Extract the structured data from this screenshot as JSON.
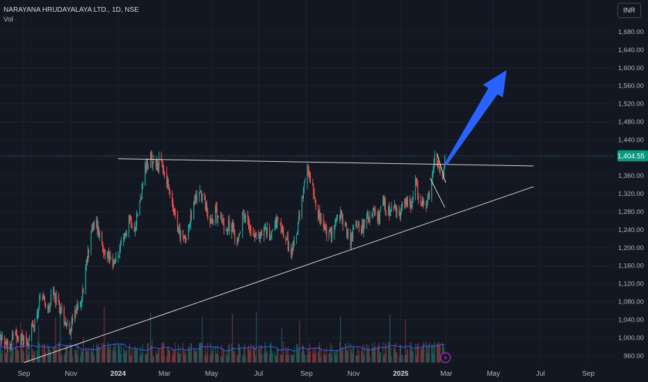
{
  "header": {
    "symbol_title": "NARAYANA HRUDAYALAYA LTD., 1D, NSE",
    "volume_label": "Vol"
  },
  "toolbar": {
    "currency_label": "INR"
  },
  "colors": {
    "background": "#131722",
    "up": "#26a69a",
    "down": "#ef5350",
    "volume_ma": "#2962ff",
    "trendline": "#e6d9d3",
    "arrow": "#2962ff",
    "price_tag": "#089981",
    "flash_badge": "#9c27b0"
  },
  "chart_data": {
    "type": "candlestick",
    "title": "NARAYANA HRUDAYALAYA LTD., 1D, NSE",
    "y_ticks": [
      "960.00",
      "1,000.00",
      "1,040.00",
      "1,080.00",
      "1,120.00",
      "1,160.00",
      "1,200.00",
      "1,240.00",
      "1,280.00",
      "1,320.00",
      "1,360.00",
      "1,400.00",
      "1,440.00",
      "1,480.00",
      "1,520.00",
      "1,560.00",
      "1,600.00",
      "1,640.00",
      "1,680.00"
    ],
    "x_ticks": [
      {
        "label": "Sep",
        "date": "2023-09-01",
        "bold": false
      },
      {
        "label": "Nov",
        "date": "2023-11-01",
        "bold": false
      },
      {
        "label": "2024",
        "date": "2024-01-01",
        "bold": true
      },
      {
        "label": "Mar",
        "date": "2024-03-01",
        "bold": false
      },
      {
        "label": "May",
        "date": "2024-05-01",
        "bold": false
      },
      {
        "label": "Jul",
        "date": "2024-07-01",
        "bold": false
      },
      {
        "label": "Sep",
        "date": "2024-09-01",
        "bold": false
      },
      {
        "label": "Nov",
        "date": "2024-11-01",
        "bold": false
      },
      {
        "label": "2025",
        "date": "2025-01-01",
        "bold": true
      },
      {
        "label": "Mar",
        "date": "2025-03-01",
        "bold": false
      },
      {
        "label": "May",
        "date": "2025-05-01",
        "bold": false
      },
      {
        "label": "Jul",
        "date": "2025-07-01",
        "bold": false
      },
      {
        "label": "Sep",
        "date": "2025-09-01",
        "bold": false
      }
    ],
    "ylim": [
      945,
      1700
    ],
    "xlim": [
      "2023-08-01",
      "2025-10-05"
    ],
    "last_price": "1,404.55",
    "price_path": [
      [
        "2023-08-01",
        1000
      ],
      [
        "2023-08-10",
        985
      ],
      [
        "2023-08-22",
        1010
      ],
      [
        "2023-09-05",
        990
      ],
      [
        "2023-09-15",
        1035
      ],
      [
        "2023-09-22",
        1085
      ],
      [
        "2023-10-02",
        1070
      ],
      [
        "2023-10-10",
        1100
      ],
      [
        "2023-10-20",
        1055
      ],
      [
        "2023-10-30",
        1020
      ],
      [
        "2023-11-06",
        1050
      ],
      [
        "2023-11-15",
        1090
      ],
      [
        "2023-11-20",
        1150
      ],
      [
        "2023-11-27",
        1240
      ],
      [
        "2023-12-04",
        1255
      ],
      [
        "2023-12-11",
        1210
      ],
      [
        "2023-12-18",
        1185
      ],
      [
        "2023-12-28",
        1165
      ],
      [
        "2024-01-08",
        1215
      ],
      [
        "2024-01-15",
        1270
      ],
      [
        "2024-01-22",
        1245
      ],
      [
        "2024-01-29",
        1300
      ],
      [
        "2024-02-05",
        1375
      ],
      [
        "2024-02-12",
        1400
      ],
      [
        "2024-02-19",
        1390
      ],
      [
        "2024-02-26",
        1385
      ],
      [
        "2024-03-04",
        1350
      ],
      [
        "2024-03-11",
        1290
      ],
      [
        "2024-03-18",
        1245
      ],
      [
        "2024-03-25",
        1215
      ],
      [
        "2024-04-01",
        1240
      ],
      [
        "2024-04-08",
        1295
      ],
      [
        "2024-04-15",
        1330
      ],
      [
        "2024-04-22",
        1300
      ],
      [
        "2024-04-29",
        1260
      ],
      [
        "2024-05-06",
        1280
      ],
      [
        "2024-05-13",
        1265
      ],
      [
        "2024-05-20",
        1240
      ],
      [
        "2024-05-27",
        1255
      ],
      [
        "2024-06-03",
        1205
      ],
      [
        "2024-06-10",
        1280
      ],
      [
        "2024-06-17",
        1255
      ],
      [
        "2024-06-24",
        1235
      ],
      [
        "2024-07-01",
        1220
      ],
      [
        "2024-07-08",
        1245
      ],
      [
        "2024-07-15",
        1225
      ],
      [
        "2024-07-22",
        1260
      ],
      [
        "2024-07-29",
        1240
      ],
      [
        "2024-08-05",
        1220
      ],
      [
        "2024-08-12",
        1185
      ],
      [
        "2024-08-19",
        1235
      ],
      [
        "2024-08-26",
        1300
      ],
      [
        "2024-09-02",
        1375
      ],
      [
        "2024-09-09",
        1340
      ],
      [
        "2024-09-16",
        1275
      ],
      [
        "2024-09-23",
        1245
      ],
      [
        "2024-09-30",
        1225
      ],
      [
        "2024-10-07",
        1250
      ],
      [
        "2024-10-14",
        1275
      ],
      [
        "2024-10-21",
        1245
      ],
      [
        "2024-10-28",
        1215
      ],
      [
        "2024-11-04",
        1260
      ],
      [
        "2024-11-11",
        1245
      ],
      [
        "2024-11-18",
        1260
      ],
      [
        "2024-11-25",
        1280
      ],
      [
        "2024-12-02",
        1260
      ],
      [
        "2024-12-09",
        1300
      ],
      [
        "2024-12-16",
        1280
      ],
      [
        "2024-12-23",
        1285
      ],
      [
        "2024-12-30",
        1275
      ],
      [
        "2025-01-06",
        1310
      ],
      [
        "2025-01-13",
        1285
      ],
      [
        "2025-01-20",
        1345
      ],
      [
        "2025-01-27",
        1300
      ],
      [
        "2025-02-03",
        1290
      ],
      [
        "2025-02-10",
        1340
      ],
      [
        "2025-02-14",
        1395
      ],
      [
        "2025-02-19",
        1380
      ],
      [
        "2025-02-24",
        1345
      ],
      [
        "2025-02-27",
        1404.55
      ]
    ],
    "volume_scale_note": "",
    "resistance_line": [
      [
        "2024-01-01",
        1398
      ],
      [
        "2025-06-22",
        1382
      ]
    ],
    "support_line": [
      [
        "2023-09-01",
        945
      ],
      [
        "2025-06-22",
        1336
      ]
    ],
    "wedge_upper": [
      [
        "2025-02-17",
        1410
      ],
      [
        "2025-02-28",
        1345
      ]
    ],
    "wedge_lower": [
      [
        "2025-02-08",
        1355
      ],
      [
        "2025-02-27",
        1290
      ]
    ],
    "arrow": {
      "from": [
        "2025-02-28",
        1385
      ],
      "to": [
        "2025-05-18",
        1595
      ]
    }
  }
}
